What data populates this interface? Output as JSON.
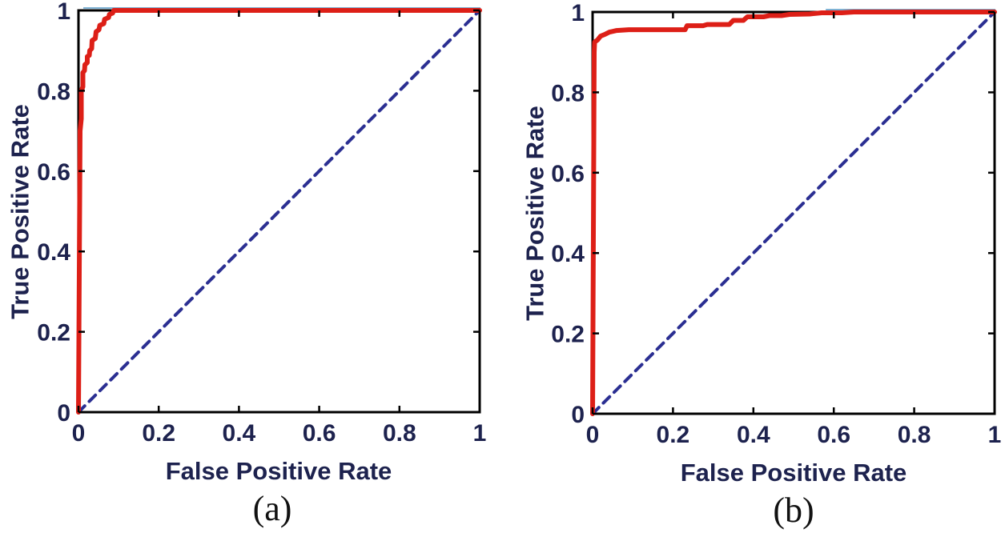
{
  "colors": {
    "curve": "#dd1f17",
    "diagonal": "#2b2f92",
    "axis": "#000000",
    "tick_text": "#1d224e",
    "caption_text": "#111111",
    "background": "#ffffff",
    "top_artifact": "#7fb3d5"
  },
  "chart_data": [
    {
      "id": "a",
      "type": "line",
      "title": "",
      "caption": "(a)",
      "xlabel": "False Positive Rate",
      "ylabel": "True Positive Rate",
      "xlim": [
        0,
        1
      ],
      "ylim": [
        0,
        1
      ],
      "grid": false,
      "legend": null,
      "xticks": [
        0,
        0.2,
        0.4,
        0.6,
        0.8,
        1
      ],
      "yticks": [
        0,
        0.2,
        0.4,
        0.6,
        0.8,
        1
      ],
      "xtick_labels": [
        "0",
        "0.2",
        "0.4",
        "0.6",
        "0.8",
        "1"
      ],
      "ytick_labels": [
        "0",
        "0.2",
        "0.4",
        "0.6",
        "0.8",
        "1"
      ],
      "series": [
        {
          "name": "roc-curve",
          "style": "solid",
          "color_key": "curve",
          "width": 6,
          "points": [
            [
              0,
              0
            ],
            [
              0.004,
              0.7
            ],
            [
              0.007,
              0.73
            ],
            [
              0.007,
              0.8
            ],
            [
              0.011,
              0.81
            ],
            [
              0.011,
              0.845
            ],
            [
              0.015,
              0.85
            ],
            [
              0.016,
              0.865
            ],
            [
              0.022,
              0.87
            ],
            [
              0.022,
              0.885
            ],
            [
              0.027,
              0.888
            ],
            [
              0.028,
              0.9
            ],
            [
              0.033,
              0.905
            ],
            [
              0.034,
              0.925
            ],
            [
              0.042,
              0.93
            ],
            [
              0.044,
              0.947
            ],
            [
              0.051,
              0.952
            ],
            [
              0.053,
              0.963
            ],
            [
              0.063,
              0.967
            ],
            [
              0.065,
              0.978
            ],
            [
              0.075,
              0.982
            ],
            [
              0.077,
              0.99
            ],
            [
              0.085,
              0.993
            ],
            [
              0.088,
              1.0
            ],
            [
              1,
              1
            ]
          ]
        },
        {
          "name": "chance-diagonal",
          "style": "dashed",
          "color_key": "diagonal",
          "width": 4,
          "points": [
            [
              0,
              0
            ],
            [
              1,
              1
            ]
          ]
        }
      ]
    },
    {
      "id": "b",
      "type": "line",
      "title": "",
      "caption": "(b)",
      "xlabel": "False Positive Rate",
      "ylabel": "True Positive Rate",
      "xlim": [
        0,
        1
      ],
      "ylim": [
        0,
        1
      ],
      "grid": false,
      "legend": null,
      "xticks": [
        0,
        0.2,
        0.4,
        0.6,
        0.8,
        1
      ],
      "yticks": [
        0,
        0.2,
        0.4,
        0.6,
        0.8,
        1
      ],
      "xtick_labels": [
        "0",
        "0.2",
        "0.4",
        "0.6",
        "0.8",
        "1"
      ],
      "ytick_labels": [
        "0",
        "0.2",
        "0.4",
        "0.6",
        "0.8",
        "1"
      ],
      "series": [
        {
          "name": "roc-curve",
          "style": "solid",
          "color_key": "curve",
          "width": 6,
          "points": [
            [
              0,
              0
            ],
            [
              0.004,
              0.9
            ],
            [
              0.005,
              0.925
            ],
            [
              0.012,
              0.93
            ],
            [
              0.02,
              0.94
            ],
            [
              0.032,
              0.945
            ],
            [
              0.042,
              0.95
            ],
            [
              0.06,
              0.954
            ],
            [
              0.09,
              0.956
            ],
            [
              0.23,
              0.956
            ],
            [
              0.235,
              0.966
            ],
            [
              0.275,
              0.966
            ],
            [
              0.285,
              0.969
            ],
            [
              0.34,
              0.969
            ],
            [
              0.35,
              0.979
            ],
            [
              0.375,
              0.979
            ],
            [
              0.385,
              0.988
            ],
            [
              0.425,
              0.988
            ],
            [
              0.44,
              0.991
            ],
            [
              0.47,
              0.991
            ],
            [
              0.49,
              0.994
            ],
            [
              0.54,
              0.995
            ],
            [
              0.57,
              0.998
            ],
            [
              0.62,
              0.998
            ],
            [
              0.65,
              1.0
            ],
            [
              1,
              1
            ]
          ]
        },
        {
          "name": "chance-diagonal",
          "style": "dashed",
          "color_key": "diagonal",
          "width": 4,
          "points": [
            [
              0,
              0
            ],
            [
              1,
              1
            ]
          ]
        }
      ]
    }
  ]
}
